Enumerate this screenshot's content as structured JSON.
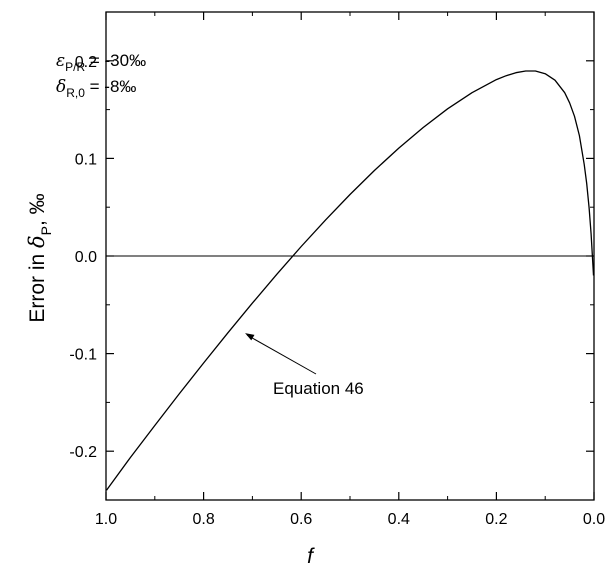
{
  "chart_data": {
    "type": "line",
    "xlabel": "f",
    "ylabel": {
      "prefix": "Error in ",
      "symbol": "δ",
      "subscript": "P",
      "suffix": ", ‰"
    },
    "xlim": [
      1.0,
      0.0
    ],
    "ylim": [
      -0.25,
      0.25
    ],
    "x_ticks": [
      1.0,
      0.8,
      0.6,
      0.4,
      0.2,
      0.0
    ],
    "x_tick_labels": [
      "1.0",
      "0.8",
      "0.6",
      "0.4",
      "0.2",
      "0.0"
    ],
    "y_ticks": [
      -0.2,
      -0.1,
      0.0,
      0.1,
      0.2
    ],
    "y_tick_labels": [
      "-0.2",
      "-0.1",
      "0.0",
      "0.1",
      "0.2"
    ],
    "grid": false,
    "reference_line": {
      "y": 0.0
    },
    "parameters": [
      {
        "symbol": "ε",
        "subscript": "P/R",
        "value": " = -30‰"
      },
      {
        "symbol": "δ",
        "subscript": "R,0",
        "value": " = -8‰"
      }
    ],
    "series": [
      {
        "x": [
          0.999,
          0.95,
          0.9,
          0.85,
          0.8,
          0.75,
          0.7,
          0.65,
          0.6,
          0.55,
          0.5,
          0.45,
          0.4,
          0.35,
          0.3,
          0.25,
          0.2,
          0.18,
          0.16,
          0.14,
          0.12,
          0.1,
          0.08,
          0.06,
          0.05,
          0.04,
          0.03,
          0.02,
          0.015,
          0.01,
          0.006,
          0.003,
          0.001
        ],
        "y": [
          -0.24,
          -0.2065,
          -0.1737,
          -0.1413,
          -0.1096,
          -0.0786,
          -0.0483,
          -0.0188,
          0.0097,
          0.037,
          0.063,
          0.0876,
          0.1106,
          0.1317,
          0.1508,
          0.1673,
          0.1807,
          0.1847,
          0.1878,
          0.1895,
          0.1895,
          0.1868,
          0.1801,
          0.1673,
          0.157,
          0.1431,
          0.1234,
          0.094,
          0.0743,
          0.0494,
          0.0225,
          -0.002,
          -0.02
        ]
      }
    ],
    "annotation": {
      "text": "Equation 46",
      "arrow_to": {
        "x": 0.715,
        "y": -0.079
      }
    }
  }
}
